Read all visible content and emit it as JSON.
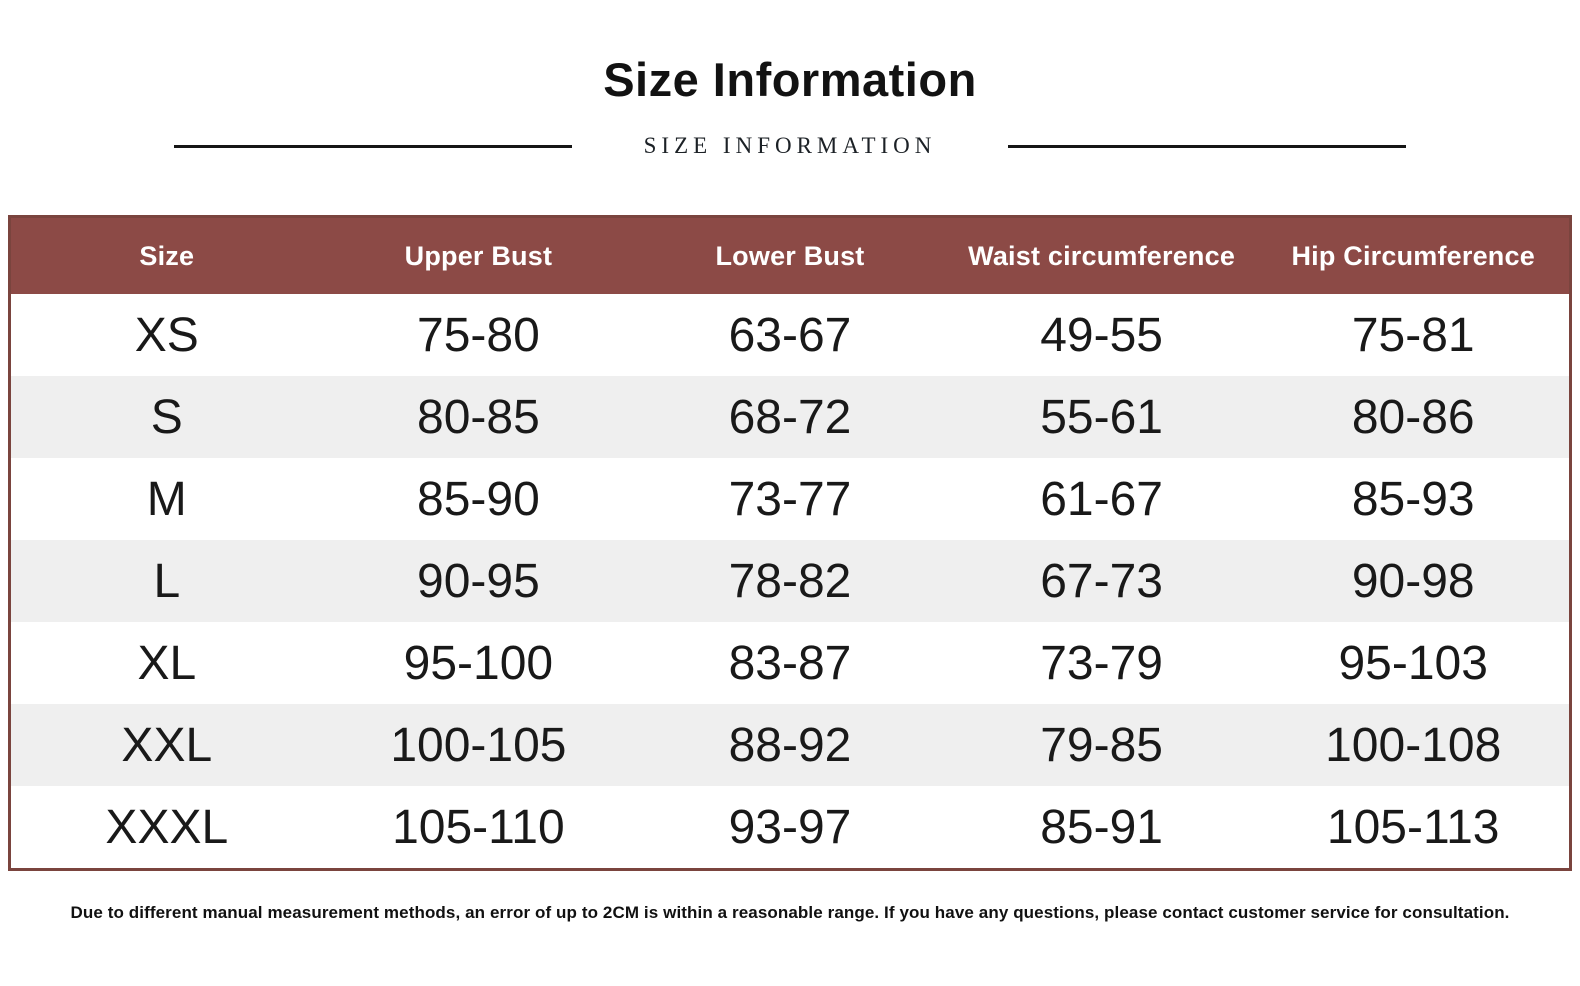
{
  "page": {
    "title": "Size Information",
    "subtitle": "SIZE INFORMATION",
    "footer_note": "Due to different manual measurement methods, an error of up to 2CM is within a reasonable range. If you have any questions, please contact customer service for consultation."
  },
  "colors": {
    "header_bg": "#8C4A46",
    "table_border": "#7A443E",
    "row_alt_bg": "#EFEFEF",
    "header_text": "#FFFFFF",
    "body_text": "#191919"
  },
  "chart_data": {
    "type": "table",
    "title": "Size Information",
    "columns": [
      "Size",
      "Upper Bust",
      "Lower Bust",
      "Waist circumference",
      "Hip Circumference"
    ],
    "rows": [
      [
        "XS",
        "75-80",
        "63-67",
        "49-55",
        "75-81"
      ],
      [
        "S",
        "80-85",
        "68-72",
        "55-61",
        "80-86"
      ],
      [
        "M",
        "85-90",
        "73-77",
        "61-67",
        "85-93"
      ],
      [
        "L",
        "90-95",
        "78-82",
        "67-73",
        "90-98"
      ],
      [
        "XL",
        "95-100",
        "83-87",
        "73-79",
        "95-103"
      ],
      [
        "XXL",
        "100-105",
        "88-92",
        "79-85",
        "100-108"
      ],
      [
        "XXXL",
        "105-110",
        "93-97",
        "85-91",
        "105-113"
      ]
    ]
  }
}
